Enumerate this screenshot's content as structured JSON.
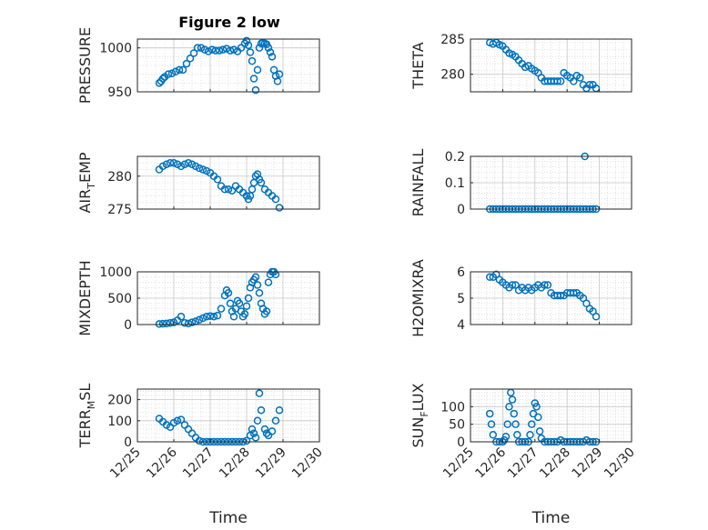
{
  "title": "Figure 2 low",
  "chart_data": [
    {
      "type": "scatter",
      "ylabel": "PRESSURE",
      "xlabel": "",
      "xlim": [
        0,
        5
      ],
      "ylim": [
        950,
        1010
      ],
      "yticks": [
        950,
        1000
      ],
      "x": [
        0.6,
        0.65,
        0.7,
        0.75,
        0.85,
        0.95,
        1.05,
        1.15,
        1.25,
        1.35,
        1.45,
        1.55,
        1.65,
        1.75,
        1.85,
        1.95,
        2.05,
        2.15,
        2.25,
        2.35,
        2.45,
        2.55,
        2.65,
        2.75,
        2.85,
        2.95,
        3.0,
        3.05,
        3.1,
        3.15,
        3.2,
        3.25,
        3.3,
        3.35,
        3.4,
        3.45,
        3.5,
        3.55,
        3.6,
        3.65,
        3.7,
        3.75,
        3.8,
        3.85,
        3.9
      ],
      "y": [
        960,
        962,
        965,
        967,
        970,
        971,
        973,
        975,
        975,
        982,
        988,
        994,
        1000,
        1000,
        998,
        996,
        998,
        997,
        997,
        998,
        999,
        997,
        998,
        996,
        1000,
        1005,
        1008,
        1003,
        995,
        985,
        965,
        952,
        975,
        1000,
        1005,
        1006,
        1005,
        1004,
        1000,
        995,
        990,
        975,
        968,
        962,
        970
      ]
    },
    {
      "type": "scatter",
      "ylabel": "THETA",
      "xlabel": "",
      "xlim": [
        0,
        5
      ],
      "ylim": [
        277.5,
        285
      ],
      "yticks": [
        280,
        285
      ],
      "x": [
        0.6,
        0.7,
        0.8,
        0.9,
        1.0,
        1.1,
        1.2,
        1.3,
        1.4,
        1.5,
        1.6,
        1.7,
        1.8,
        1.9,
        2.0,
        2.1,
        2.2,
        2.3,
        2.4,
        2.5,
        2.6,
        2.7,
        2.8,
        2.9,
        3.0,
        3.1,
        3.2,
        3.3,
        3.4,
        3.5,
        3.6,
        3.7,
        3.8,
        3.9
      ],
      "y": [
        284.5,
        284.3,
        284.5,
        284.2,
        284.0,
        283.5,
        283.0,
        282.8,
        282.5,
        282.0,
        281.5,
        281.0,
        281.2,
        280.8,
        280.5,
        280.2,
        279.5,
        279.0,
        279.0,
        279.0,
        279.0,
        279.0,
        279.0,
        280.2,
        279.8,
        279.5,
        279.0,
        279.8,
        279.5,
        278.5,
        278.0,
        278.5,
        278.5,
        278.0
      ]
    },
    {
      "type": "scatter",
      "ylabel": "AIR_TEMP",
      "xlabel": "",
      "xlim": [
        0,
        5
      ],
      "ylim": [
        275,
        283
      ],
      "yticks": [
        275,
        280
      ],
      "x": [
        0.6,
        0.7,
        0.8,
        0.9,
        1.0,
        1.1,
        1.2,
        1.3,
        1.4,
        1.5,
        1.6,
        1.7,
        1.8,
        1.9,
        2.0,
        2.1,
        2.2,
        2.3,
        2.4,
        2.5,
        2.6,
        2.7,
        2.8,
        2.9,
        3.0,
        3.05,
        3.1,
        3.15,
        3.2,
        3.25,
        3.3,
        3.35,
        3.4,
        3.5,
        3.6,
        3.7,
        3.8,
        3.9
      ],
      "y": [
        281,
        281.5,
        281.8,
        282,
        282,
        281.8,
        281.5,
        281.8,
        282,
        281.8,
        281.5,
        281.2,
        281,
        280.8,
        280.5,
        280,
        279.5,
        278.5,
        278,
        278,
        277.8,
        278.5,
        278,
        277.5,
        277,
        276.5,
        277,
        278,
        279,
        280,
        280.3,
        279.5,
        279,
        278,
        277.5,
        277,
        276.5,
        275.2
      ]
    },
    {
      "type": "scatter",
      "ylabel": "RAINFALL",
      "xlabel": "",
      "xlim": [
        0,
        5
      ],
      "ylim": [
        0,
        0.2
      ],
      "yticks": [
        0,
        0.1,
        0.2
      ],
      "x": [
        0.6,
        0.7,
        0.8,
        0.9,
        1.0,
        1.1,
        1.2,
        1.3,
        1.4,
        1.5,
        1.6,
        1.7,
        1.8,
        1.9,
        2.0,
        2.1,
        2.2,
        2.3,
        2.4,
        2.5,
        2.6,
        2.7,
        2.8,
        2.9,
        3.0,
        3.1,
        3.2,
        3.3,
        3.4,
        3.5,
        3.55,
        3.6,
        3.7,
        3.8,
        3.9
      ],
      "y": [
        0,
        0,
        0,
        0,
        0,
        0,
        0,
        0,
        0,
        0,
        0,
        0,
        0,
        0,
        0,
        0,
        0,
        0,
        0,
        0,
        0,
        0,
        0,
        0,
        0,
        0,
        0,
        0,
        0,
        0,
        0.2,
        0,
        0,
        0,
        0
      ]
    },
    {
      "type": "scatter",
      "ylabel": "MIXDEPTH",
      "xlabel": "",
      "xlim": [
        0,
        5
      ],
      "ylim": [
        0,
        1000
      ],
      "yticks": [
        0,
        500,
        1000
      ],
      "x": [
        0.6,
        0.7,
        0.8,
        0.9,
        1.0,
        1.1,
        1.2,
        1.3,
        1.4,
        1.5,
        1.6,
        1.7,
        1.8,
        1.9,
        2.0,
        2.1,
        2.2,
        2.3,
        2.4,
        2.45,
        2.5,
        2.55,
        2.6,
        2.65,
        2.7,
        2.75,
        2.8,
        2.85,
        2.9,
        2.95,
        3.0,
        3.05,
        3.1,
        3.15,
        3.2,
        3.25,
        3.3,
        3.35,
        3.4,
        3.45,
        3.5,
        3.55,
        3.6,
        3.65,
        3.7,
        3.75,
        3.8
      ],
      "y": [
        10,
        15,
        20,
        30,
        40,
        80,
        150,
        30,
        20,
        40,
        60,
        90,
        120,
        150,
        160,
        150,
        170,
        300,
        550,
        650,
        600,
        400,
        250,
        150,
        300,
        450,
        400,
        250,
        150,
        200,
        350,
        500,
        700,
        800,
        850,
        900,
        750,
        600,
        400,
        300,
        200,
        250,
        800,
        950,
        1000,
        1000,
        950
      ]
    },
    {
      "type": "scatter",
      "ylabel": "H2OMIXRA",
      "xlabel": "",
      "xlim": [
        0,
        5
      ],
      "ylim": [
        4,
        6
      ],
      "yticks": [
        4,
        5,
        6
      ],
      "x": [
        0.6,
        0.7,
        0.8,
        0.9,
        1.0,
        1.1,
        1.2,
        1.3,
        1.4,
        1.5,
        1.6,
        1.7,
        1.8,
        1.9,
        2.0,
        2.1,
        2.2,
        2.3,
        2.4,
        2.5,
        2.6,
        2.7,
        2.8,
        2.9,
        3.0,
        3.1,
        3.2,
        3.3,
        3.4,
        3.5,
        3.6,
        3.7,
        3.8,
        3.9
      ],
      "y": [
        5.8,
        5.8,
        5.9,
        5.7,
        5.6,
        5.5,
        5.4,
        5.5,
        5.5,
        5.3,
        5.4,
        5.3,
        5.4,
        5.3,
        5.4,
        5.5,
        5.4,
        5.5,
        5.5,
        5.2,
        5.1,
        5.1,
        5.1,
        5.1,
        5.2,
        5.2,
        5.2,
        5.2,
        5.1,
        5.0,
        4.8,
        4.6,
        4.5,
        4.3
      ]
    },
    {
      "type": "scatter",
      "ylabel": "TERR_MSL",
      "xlabel": "Time",
      "xlim": [
        0,
        5
      ],
      "ylim": [
        0,
        250
      ],
      "yticks": [
        0,
        100,
        200
      ],
      "xticks": [
        0,
        1,
        2,
        3,
        4,
        5
      ],
      "xticklabels": [
        "12/25",
        "12/26",
        "12/27",
        "12/28",
        "12/29",
        "12/30"
      ],
      "x": [
        0.6,
        0.7,
        0.8,
        0.9,
        1.0,
        1.1,
        1.2,
        1.3,
        1.4,
        1.5,
        1.6,
        1.7,
        1.8,
        1.9,
        2.0,
        2.1,
        2.2,
        2.3,
        2.4,
        2.5,
        2.6,
        2.7,
        2.8,
        2.9,
        3.0,
        3.1,
        3.15,
        3.2,
        3.25,
        3.3,
        3.35,
        3.4,
        3.5,
        3.55,
        3.6,
        3.7,
        3.8,
        3.9
      ],
      "y": [
        110,
        95,
        80,
        70,
        90,
        100,
        105,
        80,
        60,
        40,
        20,
        5,
        0,
        0,
        0,
        0,
        0,
        0,
        0,
        0,
        0,
        0,
        0,
        0,
        5,
        30,
        60,
        40,
        20,
        100,
        230,
        150,
        60,
        40,
        30,
        50,
        100,
        150
      ]
    },
    {
      "type": "scatter",
      "ylabel": "SUN_FLUX",
      "xlabel": "Time",
      "xlim": [
        0,
        5
      ],
      "ylim": [
        0,
        150
      ],
      "yticks": [
        0,
        50,
        100
      ],
      "xticks": [
        0,
        1,
        2,
        3,
        4,
        5
      ],
      "xticklabels": [
        "12/25",
        "12/26",
        "12/27",
        "12/28",
        "12/29",
        "12/30"
      ],
      "x": [
        0.6,
        0.65,
        0.7,
        0.8,
        0.9,
        1.0,
        1.05,
        1.1,
        1.15,
        1.2,
        1.25,
        1.3,
        1.35,
        1.4,
        1.45,
        1.5,
        1.6,
        1.7,
        1.8,
        1.85,
        1.9,
        1.95,
        2.0,
        2.05,
        2.1,
        2.15,
        2.2,
        2.3,
        2.4,
        2.5,
        2.6,
        2.7,
        2.8,
        2.9,
        3.0,
        3.1,
        3.2,
        3.3,
        3.4,
        3.5,
        3.6,
        3.7,
        3.8,
        3.9
      ],
      "y": [
        80,
        50,
        20,
        0,
        0,
        0,
        5,
        15,
        50,
        100,
        140,
        120,
        80,
        50,
        20,
        0,
        0,
        0,
        0,
        20,
        50,
        80,
        110,
        100,
        70,
        30,
        10,
        0,
        0,
        0,
        0,
        0,
        5,
        0,
        0,
        0,
        0,
        0,
        0,
        0,
        5,
        0,
        0,
        0
      ]
    }
  ]
}
